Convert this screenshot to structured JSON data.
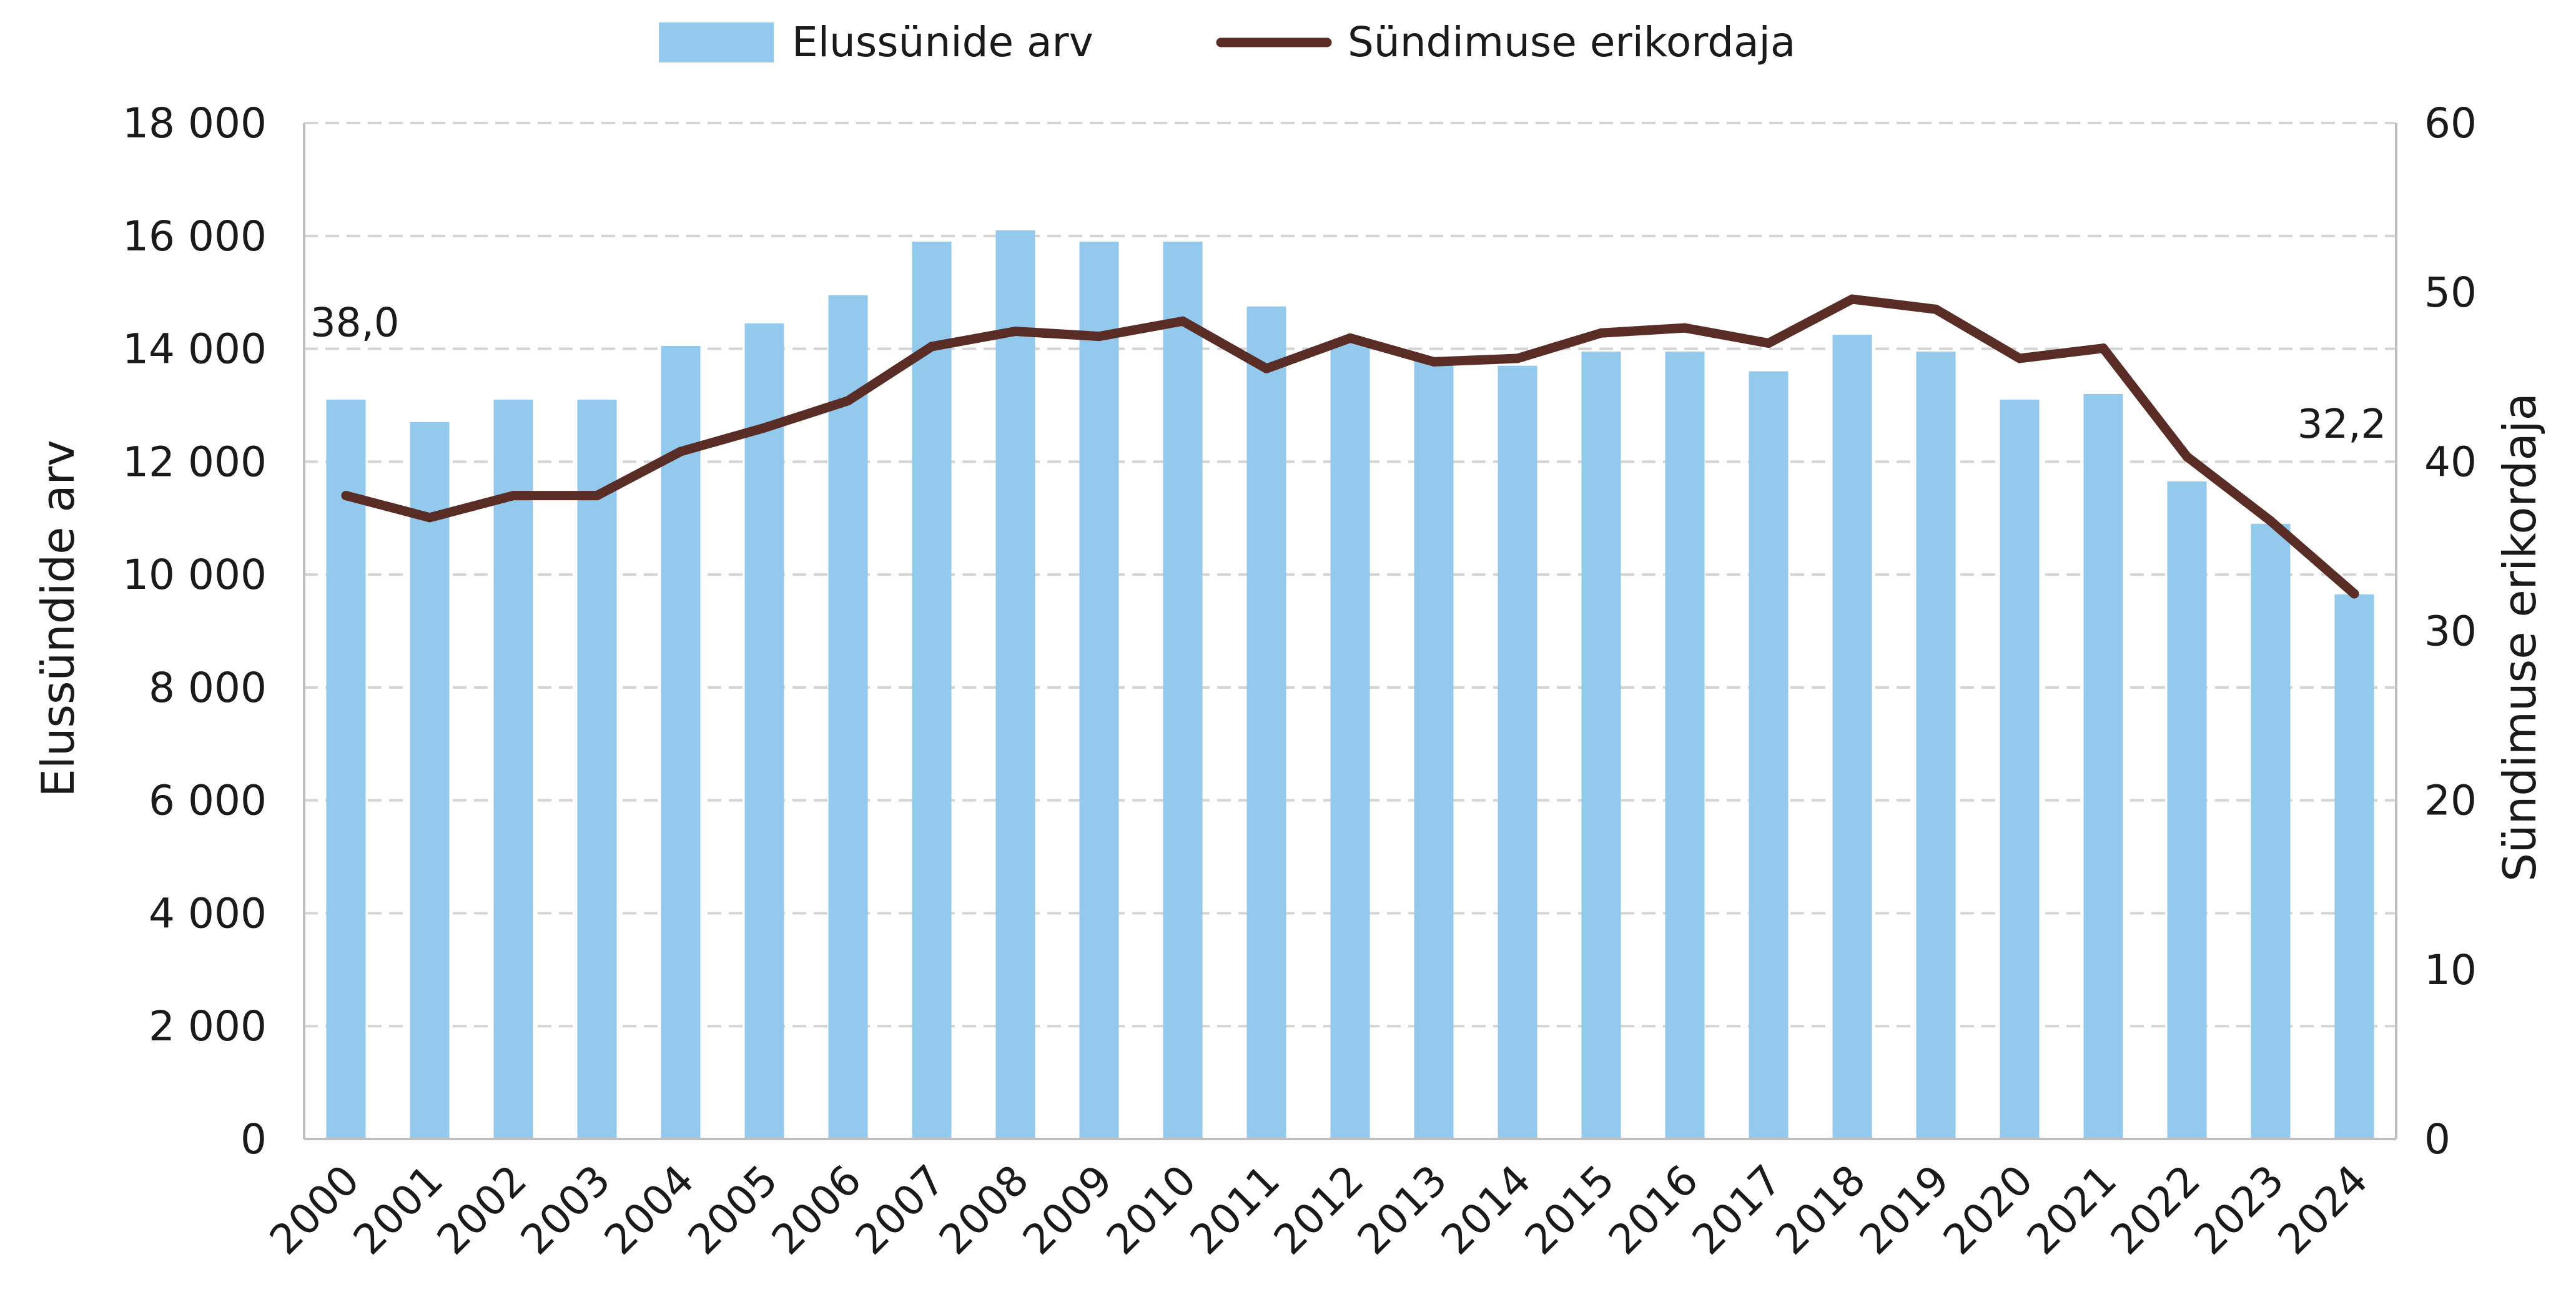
{
  "colors": {
    "bars": "#92c9ec",
    "line": "#5a2c26",
    "grid": "#d4d4d4",
    "axis": "#bfbfbf"
  },
  "chart_data": {
    "type": "bar",
    "categories": [
      "2000",
      "2001",
      "2002",
      "2003",
      "2004",
      "2005",
      "2006",
      "2007",
      "2008",
      "2009",
      "2010",
      "2011",
      "2012",
      "2013",
      "2014",
      "2015",
      "2016",
      "2017",
      "2018",
      "2019",
      "2020",
      "2021",
      "2022",
      "2023",
      "2024"
    ],
    "series": [
      {
        "name": "Elussünide arv",
        "type": "bar",
        "axis": "left",
        "values": [
          13100,
          12700,
          13100,
          13100,
          14050,
          14450,
          14950,
          15900,
          16100,
          15900,
          15900,
          14750,
          14150,
          13800,
          13700,
          13950,
          13950,
          13600,
          14250,
          13950,
          13100,
          13200,
          11650,
          10900,
          9650
        ]
      },
      {
        "name": "Sündimuse erikordaja",
        "type": "line",
        "axis": "right",
        "values": [
          38.0,
          36.7,
          38.0,
          38.0,
          40.6,
          42.0,
          43.6,
          46.8,
          47.7,
          47.4,
          48.3,
          45.5,
          47.3,
          45.9,
          46.1,
          47.6,
          47.9,
          47.0,
          49.6,
          49.0,
          46.1,
          46.7,
          40.3,
          36.5,
          32.2
        ]
      }
    ],
    "ylabel": "Elussündide arv",
    "y2label": "Sündimuse erikordaja",
    "ylim": [
      0,
      18000
    ],
    "y2lim": [
      0,
      60
    ],
    "yticks": [
      "0",
      "2 000",
      "4 000",
      "6 000",
      "8 000",
      "10 000",
      "12 000",
      "14 000",
      "16 000",
      "18 000"
    ],
    "y2ticks": [
      "0",
      "10",
      "20",
      "30",
      "40",
      "50",
      "60"
    ],
    "annotations": [
      {
        "index": 0,
        "text": "38,0"
      },
      {
        "index": 24,
        "text": "32,2"
      }
    ],
    "grid": true,
    "legend_position": "top-center"
  }
}
